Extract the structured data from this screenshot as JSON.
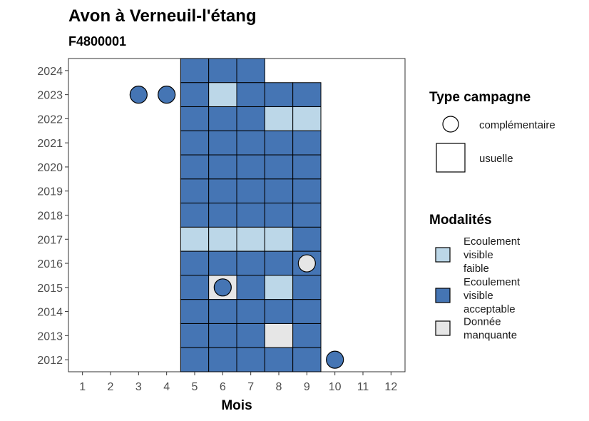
{
  "chart_data": {
    "type": "heatmap",
    "title": "Avon à Verneuil-l'étang",
    "subtitle": "F4800001",
    "xlabel": "Mois",
    "ylabel": "",
    "x_ticks": [
      1,
      2,
      3,
      4,
      5,
      6,
      7,
      8,
      9,
      10,
      11,
      12
    ],
    "y_ticks": [
      2012,
      2013,
      2014,
      2015,
      2016,
      2017,
      2018,
      2019,
      2020,
      2021,
      2022,
      2023,
      2024
    ],
    "xlim": [
      0.5,
      12.5
    ],
    "ylim": [
      2011.5,
      2024.5
    ],
    "grid": false,
    "legend_position": "right",
    "legend_type": {
      "title": "Type campagne",
      "entries": [
        {
          "key": "complementaire",
          "label": "complémentaire",
          "shape": "circle"
        },
        {
          "key": "usuelle",
          "label": "usuelle",
          "shape": "square"
        }
      ]
    },
    "legend_modalites": {
      "title": "Modalités",
      "entries": [
        {
          "key": "faible",
          "lines": [
            "Ecoulement",
            "visible",
            "faible"
          ],
          "color": "#bcd7e8"
        },
        {
          "key": "acceptable",
          "lines": [
            "Ecoulement",
            "visible",
            "acceptable"
          ],
          "color": "#4575b4"
        },
        {
          "key": "manquante",
          "lines": [
            "Donnée",
            "manquante"
          ],
          "color": "#e6e6e6"
        }
      ]
    },
    "cells": [
      {
        "year": 2024,
        "month": 5,
        "value": "acceptable",
        "type": "usuelle"
      },
      {
        "year": 2024,
        "month": 6,
        "value": "acceptable",
        "type": "usuelle"
      },
      {
        "year": 2024,
        "month": 7,
        "value": "acceptable",
        "type": "usuelle"
      },
      {
        "year": 2023,
        "month": 3,
        "value": "acceptable",
        "type": "complementaire"
      },
      {
        "year": 2023,
        "month": 4,
        "value": "acceptable",
        "type": "complementaire"
      },
      {
        "year": 2023,
        "month": 5,
        "value": "acceptable",
        "type": "usuelle"
      },
      {
        "year": 2023,
        "month": 6,
        "value": "faible",
        "type": "usuelle"
      },
      {
        "year": 2023,
        "month": 7,
        "value": "acceptable",
        "type": "usuelle"
      },
      {
        "year": 2023,
        "month": 8,
        "value": "acceptable",
        "type": "usuelle"
      },
      {
        "year": 2023,
        "month": 9,
        "value": "acceptable",
        "type": "usuelle"
      },
      {
        "year": 2022,
        "month": 5,
        "value": "acceptable",
        "type": "usuelle"
      },
      {
        "year": 2022,
        "month": 6,
        "value": "acceptable",
        "type": "usuelle"
      },
      {
        "year": 2022,
        "month": 7,
        "value": "acceptable",
        "type": "usuelle"
      },
      {
        "year": 2022,
        "month": 8,
        "value": "faible",
        "type": "usuelle"
      },
      {
        "year": 2022,
        "month": 9,
        "value": "faible",
        "type": "usuelle"
      },
      {
        "year": 2021,
        "month": 5,
        "value": "acceptable",
        "type": "usuelle"
      },
      {
        "year": 2021,
        "month": 6,
        "value": "acceptable",
        "type": "usuelle"
      },
      {
        "year": 2021,
        "month": 7,
        "value": "acceptable",
        "type": "usuelle"
      },
      {
        "year": 2021,
        "month": 8,
        "value": "acceptable",
        "type": "usuelle"
      },
      {
        "year": 2021,
        "month": 9,
        "value": "acceptable",
        "type": "usuelle"
      },
      {
        "year": 2020,
        "month": 5,
        "value": "acceptable",
        "type": "usuelle"
      },
      {
        "year": 2020,
        "month": 6,
        "value": "acceptable",
        "type": "usuelle"
      },
      {
        "year": 2020,
        "month": 7,
        "value": "acceptable",
        "type": "usuelle"
      },
      {
        "year": 2020,
        "month": 8,
        "value": "acceptable",
        "type": "usuelle"
      },
      {
        "year": 2020,
        "month": 9,
        "value": "acceptable",
        "type": "usuelle"
      },
      {
        "year": 2019,
        "month": 5,
        "value": "acceptable",
        "type": "usuelle"
      },
      {
        "year": 2019,
        "month": 6,
        "value": "acceptable",
        "type": "usuelle"
      },
      {
        "year": 2019,
        "month": 7,
        "value": "acceptable",
        "type": "usuelle"
      },
      {
        "year": 2019,
        "month": 8,
        "value": "acceptable",
        "type": "usuelle"
      },
      {
        "year": 2019,
        "month": 9,
        "value": "acceptable",
        "type": "usuelle"
      },
      {
        "year": 2018,
        "month": 5,
        "value": "acceptable",
        "type": "usuelle"
      },
      {
        "year": 2018,
        "month": 6,
        "value": "acceptable",
        "type": "usuelle"
      },
      {
        "year": 2018,
        "month": 7,
        "value": "acceptable",
        "type": "usuelle"
      },
      {
        "year": 2018,
        "month": 8,
        "value": "acceptable",
        "type": "usuelle"
      },
      {
        "year": 2018,
        "month": 9,
        "value": "acceptable",
        "type": "usuelle"
      },
      {
        "year": 2017,
        "month": 5,
        "value": "faible",
        "type": "usuelle"
      },
      {
        "year": 2017,
        "month": 6,
        "value": "faible",
        "type": "usuelle"
      },
      {
        "year": 2017,
        "month": 7,
        "value": "faible",
        "type": "usuelle"
      },
      {
        "year": 2017,
        "month": 8,
        "value": "faible",
        "type": "usuelle"
      },
      {
        "year": 2017,
        "month": 9,
        "value": "acceptable",
        "type": "usuelle"
      },
      {
        "year": 2016,
        "month": 5,
        "value": "acceptable",
        "type": "usuelle"
      },
      {
        "year": 2016,
        "month": 6,
        "value": "acceptable",
        "type": "usuelle"
      },
      {
        "year": 2016,
        "month": 7,
        "value": "acceptable",
        "type": "usuelle"
      },
      {
        "year": 2016,
        "month": 8,
        "value": "acceptable",
        "type": "usuelle"
      },
      {
        "year": 2016,
        "month": 9,
        "value": "acceptable",
        "type": "usuelle"
      },
      {
        "year": 2016,
        "month": 9,
        "value": "manquante",
        "type": "complementaire"
      },
      {
        "year": 2015,
        "month": 5,
        "value": "acceptable",
        "type": "usuelle"
      },
      {
        "year": 2015,
        "month": 6,
        "value": "manquante",
        "type": "usuelle"
      },
      {
        "year": 2015,
        "month": 6,
        "value": "acceptable",
        "type": "complementaire"
      },
      {
        "year": 2015,
        "month": 7,
        "value": "acceptable",
        "type": "usuelle"
      },
      {
        "year": 2015,
        "month": 8,
        "value": "faible",
        "type": "usuelle"
      },
      {
        "year": 2015,
        "month": 9,
        "value": "acceptable",
        "type": "usuelle"
      },
      {
        "year": 2014,
        "month": 5,
        "value": "acceptable",
        "type": "usuelle"
      },
      {
        "year": 2014,
        "month": 6,
        "value": "acceptable",
        "type": "usuelle"
      },
      {
        "year": 2014,
        "month": 7,
        "value": "acceptable",
        "type": "usuelle"
      },
      {
        "year": 2014,
        "month": 8,
        "value": "acceptable",
        "type": "usuelle"
      },
      {
        "year": 2014,
        "month": 9,
        "value": "acceptable",
        "type": "usuelle"
      },
      {
        "year": 2013,
        "month": 5,
        "value": "acceptable",
        "type": "usuelle"
      },
      {
        "year": 2013,
        "month": 6,
        "value": "acceptable",
        "type": "usuelle"
      },
      {
        "year": 2013,
        "month": 7,
        "value": "acceptable",
        "type": "usuelle"
      },
      {
        "year": 2013,
        "month": 8,
        "value": "manquante",
        "type": "usuelle"
      },
      {
        "year": 2013,
        "month": 9,
        "value": "acceptable",
        "type": "usuelle"
      },
      {
        "year": 2012,
        "month": 5,
        "value": "acceptable",
        "type": "usuelle"
      },
      {
        "year": 2012,
        "month": 6,
        "value": "acceptable",
        "type": "usuelle"
      },
      {
        "year": 2012,
        "month": 7,
        "value": "acceptable",
        "type": "usuelle"
      },
      {
        "year": 2012,
        "month": 8,
        "value": "acceptable",
        "type": "usuelle"
      },
      {
        "year": 2012,
        "month": 9,
        "value": "acceptable",
        "type": "usuelle"
      },
      {
        "year": 2012,
        "month": 10,
        "value": "acceptable",
        "type": "complementaire"
      }
    ]
  }
}
